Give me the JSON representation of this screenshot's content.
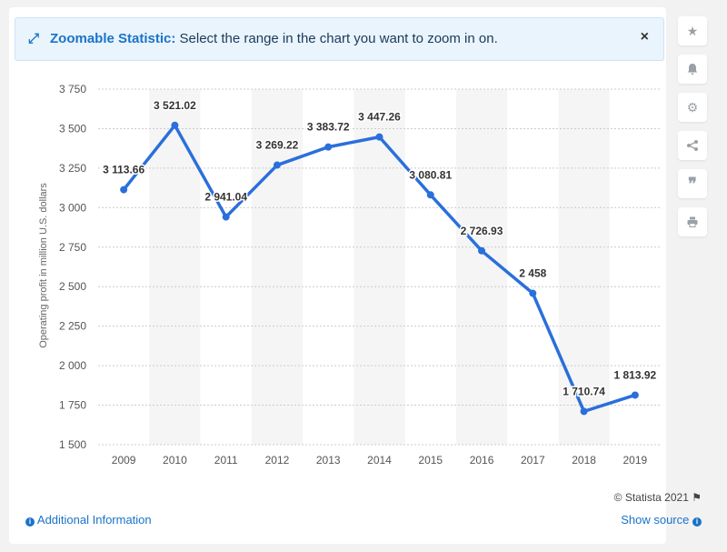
{
  "banner": {
    "title": "Zoomable Statistic:",
    "text": " Select the range in the chart you want to zoom in on.",
    "close_label": "×"
  },
  "sidebar": {
    "items": [
      {
        "name": "star-icon",
        "glyph": "★"
      },
      {
        "name": "bell-icon",
        "glyph": "🔔"
      },
      {
        "name": "gear-icon",
        "glyph": "⚙"
      },
      {
        "name": "share-icon",
        "glyph": "⋖"
      },
      {
        "name": "quote-icon",
        "glyph": "❞"
      },
      {
        "name": "print-icon",
        "glyph": "⎙"
      }
    ]
  },
  "footer": {
    "copyright": "© Statista 2021",
    "additional_info": "Additional Information",
    "show_source": "Show source"
  },
  "colors": {
    "line": "#2a6fdb",
    "band": "#f5f5f5",
    "accent": "#1a73c9"
  },
  "chart_data": {
    "type": "line",
    "ylabel": "Operating profit in million U.S. dollars",
    "xlabel": "",
    "ylim": [
      1500,
      3750
    ],
    "yticks": [
      1500,
      1750,
      2000,
      2250,
      2500,
      2750,
      3000,
      3250,
      3500,
      3750
    ],
    "ytick_labels": [
      "1 500",
      "1 750",
      "2 000",
      "2 250",
      "2 500",
      "2 750",
      "3 000",
      "3 250",
      "3 500",
      "3 750"
    ],
    "categories": [
      "2009",
      "2010",
      "2011",
      "2012",
      "2013",
      "2014",
      "2015",
      "2016",
      "2017",
      "2018",
      "2019"
    ],
    "values": [
      3113.66,
      3521.02,
      2941.04,
      3269.22,
      3383.72,
      3447.26,
      3080.81,
      2726.93,
      2458,
      1710.74,
      1813.92
    ],
    "value_labels": [
      "3 113.66",
      "3 521.02",
      "2 941.04",
      "3 269.22",
      "3 383.72",
      "3 447.26",
      "3 080.81",
      "2 726.93",
      "2 458",
      "1 710.74",
      "1 813.92"
    ],
    "grid": true
  }
}
